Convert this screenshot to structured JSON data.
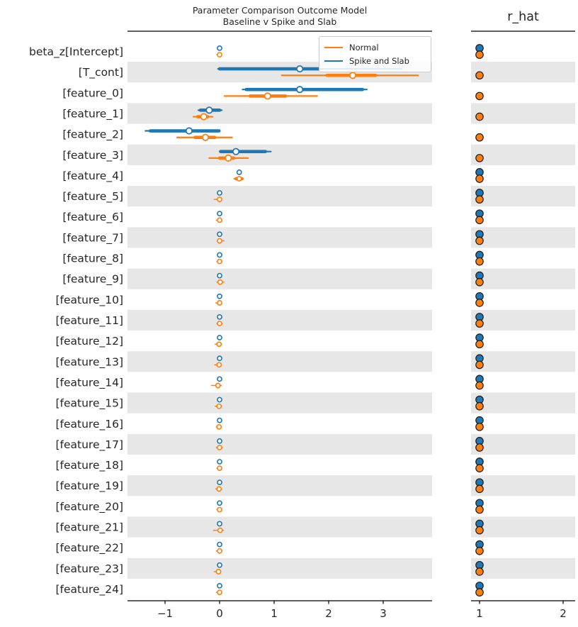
{
  "title": {
    "line1": "Parameter Comparison Outcome Model",
    "line2": "Baseline v Spike and Slab"
  },
  "rhat_title": "r_hat",
  "legend": [
    {
      "label": "Normal",
      "color": "#ff7f0e"
    },
    {
      "label": "Spike and Slab",
      "color": "#1f77b4"
    }
  ],
  "colors": {
    "normal": "#ff7f0e",
    "spike": "#1f77b4",
    "band": "#e7e7e7",
    "axis": "#000000",
    "marker_face": "#ffffff",
    "rhat_dot_edge": "#1a1a1a"
  },
  "chart_data": {
    "type": "forest",
    "title": "Parameter Comparison Outcome Model\nBaseline v Spike and Slab",
    "panels": [
      "credible_intervals",
      "r_hat"
    ],
    "main_axis": {
      "ticks": [
        -1,
        0,
        1,
        2,
        3
      ],
      "xlim": [
        -1.61,
        3.9
      ]
    },
    "rhat_axis": {
      "ticks": [
        1,
        2
      ],
      "xlim": [
        0.91,
        2.15
      ]
    },
    "legend_entries": [
      "Normal",
      "Spike and Slab"
    ],
    "rows": [
      {
        "label": "beta_z[Intercept]",
        "spike": {
          "ci": [
            -0.02,
            0.02
          ],
          "iqr": null,
          "med": 0.0,
          "rhat": 1.0
        },
        "normal": {
          "ci": [
            -0.05,
            0.03
          ],
          "iqr": null,
          "med": 0.0,
          "rhat": 1.0
        }
      },
      {
        "label": "[T_cont]",
        "spike": {
          "ci": [
            -0.03,
            3.34
          ],
          "iqr": [
            0.0,
            1.82
          ],
          "med": 1.47,
          "rhat": null
        },
        "normal": {
          "ci": [
            1.14,
            3.64
          ],
          "iqr": [
            1.97,
            2.86
          ],
          "med": 2.44,
          "rhat": 1.0
        }
      },
      {
        "label": "[feature_0]",
        "spike": {
          "ci": [
            0.42,
            2.7
          ],
          "iqr": [
            0.49,
            2.62
          ],
          "med": 1.47,
          "rhat": null
        },
        "normal": {
          "ci": [
            0.09,
            1.79
          ],
          "iqr": [
            0.56,
            1.21
          ],
          "med": 0.88,
          "rhat": 1.0
        }
      },
      {
        "label": "[feature_1]",
        "spike": {
          "ci": [
            -0.39,
            0.04
          ],
          "iqr": [
            -0.35,
            0.0
          ],
          "med": -0.19,
          "rhat": null
        },
        "normal": {
          "ci": [
            -0.48,
            -0.13
          ],
          "iqr": [
            -0.4,
            -0.22
          ],
          "med": -0.29,
          "rhat": 1.0
        }
      },
      {
        "label": "[feature_2]",
        "spike": {
          "ci": [
            -1.36,
            0.0
          ],
          "iqr": [
            -1.27,
            -0.01
          ],
          "med": -0.56,
          "rhat": null
        },
        "normal": {
          "ci": [
            -0.78,
            0.23
          ],
          "iqr": [
            -0.45,
            -0.09
          ],
          "med": -0.26,
          "rhat": 1.0
        }
      },
      {
        "label": "[feature_3]",
        "spike": {
          "ci": [
            0.0,
            0.94
          ],
          "iqr": [
            0.02,
            0.84
          ],
          "med": 0.3,
          "rhat": null
        },
        "normal": {
          "ci": [
            -0.19,
            0.52
          ],
          "iqr": [
            0.0,
            0.26
          ],
          "med": 0.16,
          "rhat": 1.0
        }
      },
      {
        "label": "[feature_4]",
        "spike": {
          "ci": [
            0.33,
            0.39
          ],
          "iqr": null,
          "med": 0.36,
          "rhat": 1.0
        },
        "normal": {
          "ci": [
            0.26,
            0.44
          ],
          "iqr": [
            0.3,
            0.41
          ],
          "med": 0.36,
          "rhat": 1.0
        }
      },
      {
        "label": "[feature_5]",
        "spike": {
          "ci": [
            -0.02,
            0.02
          ],
          "iqr": null,
          "med": 0.0,
          "rhat": 1.0
        },
        "normal": {
          "ci": [
            -0.1,
            0.03
          ],
          "iqr": null,
          "med": 0.0,
          "rhat": 1.0
        }
      },
      {
        "label": "[feature_6]",
        "spike": {
          "ci": [
            -0.02,
            0.02
          ],
          "iqr": null,
          "med": 0.0,
          "rhat": 1.0
        },
        "normal": {
          "ci": [
            -0.06,
            0.04
          ],
          "iqr": null,
          "med": 0.0,
          "rhat": 1.0
        }
      },
      {
        "label": "[feature_7]",
        "spike": {
          "ci": [
            -0.02,
            0.02
          ],
          "iqr": null,
          "med": 0.0,
          "rhat": 1.0
        },
        "normal": {
          "ci": [
            -0.04,
            0.08
          ],
          "iqr": null,
          "med": 0.0,
          "rhat": 1.0
        }
      },
      {
        "label": "[feature_8]",
        "spike": {
          "ci": [
            -0.02,
            0.02
          ],
          "iqr": null,
          "med": 0.0,
          "rhat": 1.0
        },
        "normal": {
          "ci": [
            -0.05,
            0.04
          ],
          "iqr": null,
          "med": 0.0,
          "rhat": 1.0
        }
      },
      {
        "label": "[feature_9]",
        "spike": {
          "ci": [
            -0.02,
            0.02
          ],
          "iqr": null,
          "med": 0.0,
          "rhat": 1.0
        },
        "normal": {
          "ci": [
            -0.05,
            0.08
          ],
          "iqr": null,
          "med": 0.01,
          "rhat": 1.0
        }
      },
      {
        "label": "[feature_10]",
        "spike": {
          "ci": [
            -0.02,
            0.02
          ],
          "iqr": null,
          "med": 0.0,
          "rhat": 1.0
        },
        "normal": {
          "ci": [
            -0.07,
            0.03
          ],
          "iqr": null,
          "med": 0.0,
          "rhat": 1.0
        }
      },
      {
        "label": "[feature_11]",
        "spike": {
          "ci": [
            -0.02,
            0.02
          ],
          "iqr": null,
          "med": 0.0,
          "rhat": 1.0
        },
        "normal": {
          "ci": [
            -0.05,
            0.05
          ],
          "iqr": null,
          "med": 0.0,
          "rhat": 1.0
        }
      },
      {
        "label": "[feature_12]",
        "spike": {
          "ci": [
            -0.02,
            0.02
          ],
          "iqr": null,
          "med": 0.0,
          "rhat": 1.0
        },
        "normal": {
          "ci": [
            -0.08,
            0.03
          ],
          "iqr": null,
          "med": -0.01,
          "rhat": 1.0
        }
      },
      {
        "label": "[feature_13]",
        "spike": {
          "ci": [
            -0.02,
            0.02
          ],
          "iqr": null,
          "med": 0.0,
          "rhat": 1.0
        },
        "normal": {
          "ci": [
            -0.09,
            0.03
          ],
          "iqr": null,
          "med": -0.01,
          "rhat": 1.0
        }
      },
      {
        "label": "[feature_14]",
        "spike": {
          "ci": [
            -0.02,
            0.02
          ],
          "iqr": null,
          "med": 0.0,
          "rhat": 1.0
        },
        "normal": {
          "ci": [
            -0.15,
            0.03
          ],
          "iqr": null,
          "med": -0.03,
          "rhat": 1.0
        }
      },
      {
        "label": "[feature_15]",
        "spike": {
          "ci": [
            -0.02,
            0.02
          ],
          "iqr": null,
          "med": 0.0,
          "rhat": 1.0
        },
        "normal": {
          "ci": [
            -0.08,
            0.04
          ],
          "iqr": null,
          "med": -0.01,
          "rhat": 1.0
        }
      },
      {
        "label": "[feature_16]",
        "spike": {
          "ci": [
            -0.02,
            0.02
          ],
          "iqr": null,
          "med": 0.0,
          "rhat": 1.0
        },
        "normal": {
          "ci": [
            -0.06,
            0.03
          ],
          "iqr": null,
          "med": -0.01,
          "rhat": 1.0
        }
      },
      {
        "label": "[feature_17]",
        "spike": {
          "ci": [
            -0.02,
            0.02
          ],
          "iqr": null,
          "med": 0.0,
          "rhat": 1.0
        },
        "normal": {
          "ci": [
            -0.06,
            0.05
          ],
          "iqr": null,
          "med": 0.0,
          "rhat": 1.0
        }
      },
      {
        "label": "[feature_18]",
        "spike": {
          "ci": [
            -0.02,
            0.02
          ],
          "iqr": null,
          "med": 0.0,
          "rhat": 1.0
        },
        "normal": {
          "ci": [
            -0.05,
            0.04
          ],
          "iqr": null,
          "med": 0.0,
          "rhat": 1.0
        }
      },
      {
        "label": "[feature_19]",
        "spike": {
          "ci": [
            -0.02,
            0.02
          ],
          "iqr": null,
          "med": 0.0,
          "rhat": 1.0
        },
        "normal": {
          "ci": [
            -0.07,
            0.03
          ],
          "iqr": null,
          "med": -0.01,
          "rhat": 1.0
        }
      },
      {
        "label": "[feature_20]",
        "spike": {
          "ci": [
            -0.02,
            0.02
          ],
          "iqr": null,
          "med": 0.0,
          "rhat": 1.0
        },
        "normal": {
          "ci": [
            -0.05,
            0.04
          ],
          "iqr": null,
          "med": 0.0,
          "rhat": 1.0
        }
      },
      {
        "label": "[feature_21]",
        "spike": {
          "ci": [
            -0.02,
            0.02
          ],
          "iqr": null,
          "med": 0.0,
          "rhat": 1.0
        },
        "normal": {
          "ci": [
            -0.11,
            0.07
          ],
          "iqr": null,
          "med": 0.01,
          "rhat": 1.0
        }
      },
      {
        "label": "[feature_22]",
        "spike": {
          "ci": [
            -0.02,
            0.02
          ],
          "iqr": null,
          "med": 0.0,
          "rhat": 1.0
        },
        "normal": {
          "ci": [
            -0.06,
            0.04
          ],
          "iqr": null,
          "med": 0.0,
          "rhat": 1.0
        }
      },
      {
        "label": "[feature_23]",
        "spike": {
          "ci": [
            -0.02,
            0.02
          ],
          "iqr": null,
          "med": 0.0,
          "rhat": 1.0
        },
        "normal": {
          "ci": [
            -0.1,
            0.02
          ],
          "iqr": null,
          "med": -0.02,
          "rhat": 1.0
        }
      },
      {
        "label": "[feature_24]",
        "spike": {
          "ci": [
            -0.02,
            0.02
          ],
          "iqr": null,
          "med": 0.0,
          "rhat": 1.0
        },
        "normal": {
          "ci": [
            -0.06,
            0.04
          ],
          "iqr": null,
          "med": 0.0,
          "rhat": 1.0
        }
      }
    ]
  }
}
